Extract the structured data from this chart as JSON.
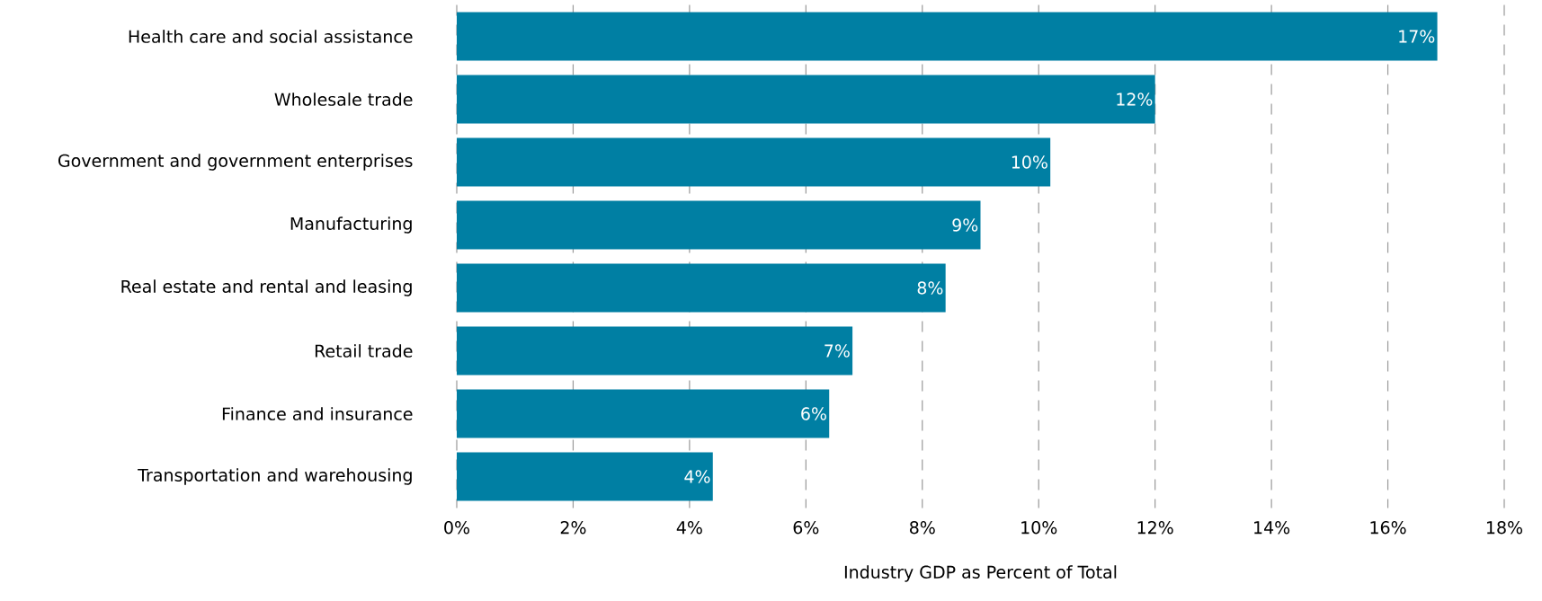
{
  "chart_data": {
    "type": "bar",
    "orientation": "horizontal",
    "xlabel": "Industry GDP as Percent of Total",
    "categories": [
      "Health care and social assistance",
      "Wholesale trade",
      "Government and government enterprises",
      "Manufacturing",
      "Real estate and rental and leasing",
      "Retail trade",
      "Finance and insurance",
      "Transportation and warehousing"
    ],
    "values": [
      16.85,
      12.0,
      10.2,
      9.0,
      8.4,
      6.8,
      6.4,
      4.4
    ],
    "value_labels": [
      "17%",
      "12%",
      "10%",
      "9%",
      "8%",
      "7%",
      "6%",
      "4%"
    ],
    "color": "#007fa3",
    "xlim": [
      0,
      18
    ],
    "xticks": [
      {
        "value": 0,
        "label": "0%"
      },
      {
        "value": 2,
        "label": "2%"
      },
      {
        "value": 4,
        "label": "4%"
      },
      {
        "value": 6,
        "label": "6%"
      },
      {
        "value": 8,
        "label": "8%"
      },
      {
        "value": 10,
        "label": "10%"
      },
      {
        "value": 12,
        "label": "12%"
      },
      {
        "value": 14,
        "label": "14%"
      },
      {
        "value": 16,
        "label": "16%"
      },
      {
        "value": 18,
        "label": "18%"
      }
    ],
    "grid": "x"
  }
}
